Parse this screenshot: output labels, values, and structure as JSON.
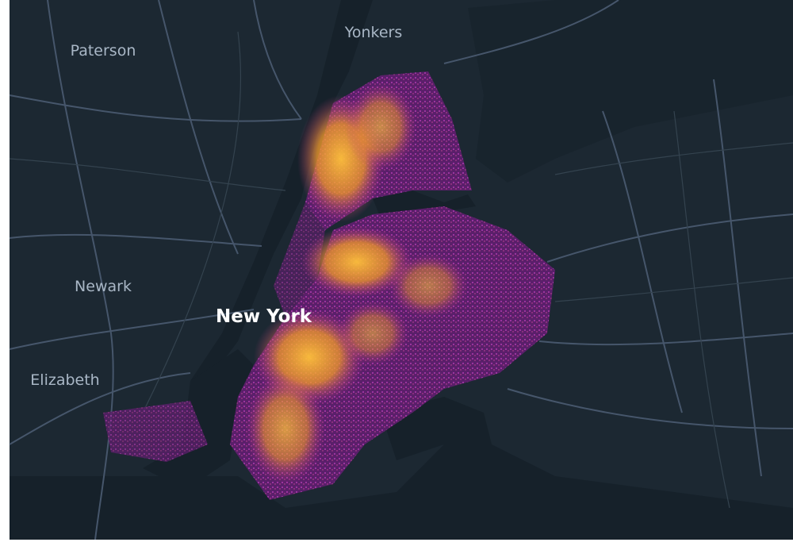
{
  "places": [
    "Yonkers",
    "Paterson",
    "Newark",
    "New York",
    "Elizabeth"
  ]
}
